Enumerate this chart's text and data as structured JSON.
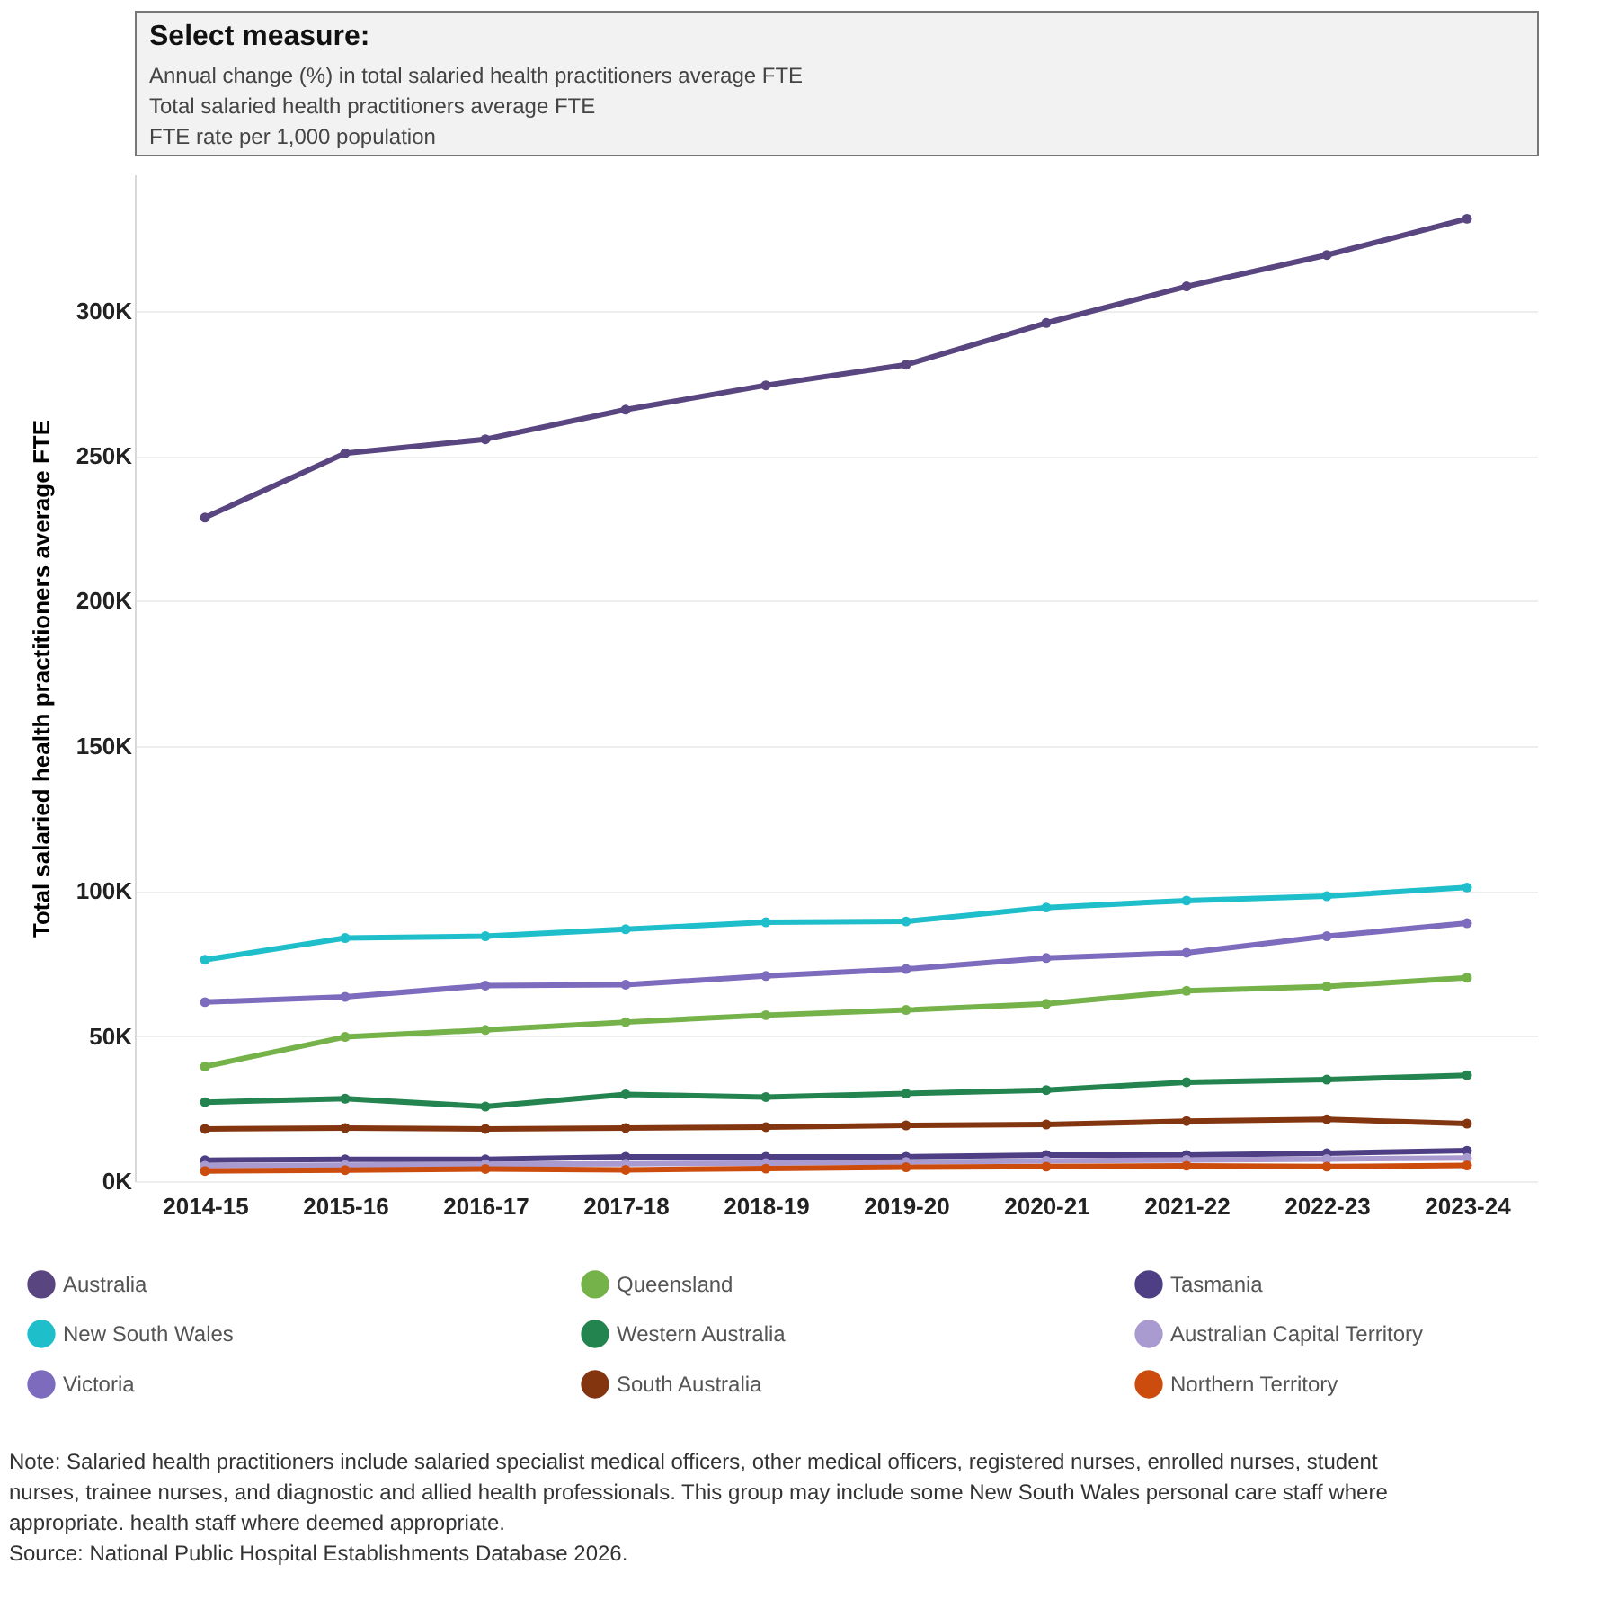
{
  "chart_data": {
    "type": "line",
    "title": "Select measure:",
    "ylabel": "Total salaried health practitioners average FTE",
    "categories": [
      "2014-15",
      "2015-16",
      "2016-17",
      "2017-18",
      "2018-19",
      "2019-20",
      "2020-21",
      "2021-22",
      "2022-23",
      "2023-24"
    ],
    "series": [
      {
        "name": "Australia",
        "color": "#59457f",
        "values": [
          228700,
          250900,
          255700,
          265900,
          274300,
          281400,
          295800,
          308400,
          319200,
          331700
        ]
      },
      {
        "name": "New South Wales",
        "color": "#1fbecb",
        "values": [
          76300,
          83800,
          84400,
          86800,
          89200,
          89500,
          94300,
          96700,
          98200,
          101200
        ]
      },
      {
        "name": "Victoria",
        "color": "#7d6bbd",
        "values": [
          61700,
          63500,
          67400,
          67700,
          70700,
          73100,
          76900,
          78700,
          84400,
          88900
        ]
      },
      {
        "name": "Queensland",
        "color": "#75b24a",
        "values": [
          39500,
          49700,
          52100,
          54800,
          57200,
          59000,
          61100,
          65600,
          67100,
          70100
        ]
      },
      {
        "name": "Western Australia",
        "color": "#23844f",
        "values": [
          27200,
          28400,
          25700,
          29900,
          29000,
          30200,
          31400,
          34100,
          35000,
          36500
        ]
      },
      {
        "name": "South Australia",
        "color": "#833510",
        "values": [
          18000,
          18300,
          18000,
          18300,
          18600,
          19200,
          19500,
          20700,
          21300,
          19800
        ]
      },
      {
        "name": "Tasmania",
        "color": "#4e3f85",
        "values": [
          7200,
          7500,
          7500,
          8400,
          8400,
          8400,
          9000,
          9000,
          9600,
          10500
        ]
      },
      {
        "name": "Australian Capital Territory",
        "color": "#a99bd0",
        "values": [
          5300,
          5500,
          5800,
          6000,
          6200,
          6600,
          7000,
          7300,
          7600,
          8000
        ]
      },
      {
        "name": "Northern Territory",
        "color": "#cc4c0e",
        "values": [
          3500,
          3800,
          4200,
          3900,
          4300,
          4800,
          5000,
          5300,
          5000,
          5400
        ]
      }
    ],
    "ylim": [
      0,
      347000
    ],
    "yticks": [
      {
        "value": 0,
        "label": "0K"
      },
      {
        "value": 50000,
        "label": "50K"
      },
      {
        "value": 100000,
        "label": "100K"
      },
      {
        "value": 150000,
        "label": "150K"
      },
      {
        "value": 200000,
        "label": "200K"
      },
      {
        "value": 250000,
        "label": "250K"
      },
      {
        "value": 300000,
        "label": "300K"
      }
    ],
    "grid": "y",
    "legend": "bottom",
    "marker": "circle",
    "line_style": "solid",
    "annotations": [
      "Annual change (%) in total salaried health practitioners average FTE",
      "Total salaried health practitioners average FTE",
      "FTE rate per 1,000 population",
      "Note: Salaried health practitioners include salaried specialist medical officers, other medical officers, registered nurses, enrolled nurses, student nurses, trainee nurses, and diagnostic and allied health professionals. This group may include some New South Wales personal care staff where appropriate. health staff where deemed appropriate.",
      "Source: National Public Hospital Establishments Database 2026."
    ]
  }
}
